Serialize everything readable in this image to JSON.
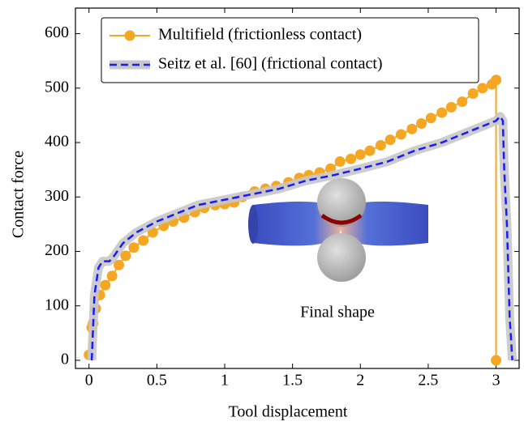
{
  "chart_data": {
    "type": "line",
    "xlabel": "Tool displacement",
    "ylabel": "Contact force",
    "annotation": "Final shape",
    "xlim": [
      -0.1,
      3.17
    ],
    "ylim": [
      -15,
      647
    ],
    "xticks": [
      0,
      0.5,
      1,
      1.5,
      2,
      2.5,
      3
    ],
    "yticks": [
      0,
      100,
      200,
      300,
      400,
      500,
      600
    ],
    "legend": "upper left",
    "series": [
      {
        "name": "Multifield (frictionless contact)",
        "color": "#f5a623",
        "marker": true,
        "x": [
          0.0,
          0.02,
          0.03,
          0.05,
          0.08,
          0.12,
          0.17,
          0.22,
          0.27,
          0.33,
          0.4,
          0.47,
          0.55,
          0.62,
          0.7,
          0.78,
          0.85,
          0.93,
          1.0,
          1.07,
          1.13,
          1.22,
          1.3,
          1.38,
          1.47,
          1.55,
          1.62,
          1.7,
          1.78,
          1.85,
          1.93,
          2.0,
          2.07,
          2.15,
          2.22,
          2.3,
          2.38,
          2.45,
          2.52,
          2.6,
          2.67,
          2.75,
          2.83,
          2.9,
          2.97,
          3.0,
          3.0
        ],
        "values": [
          10,
          60,
          68,
          95,
          120,
          138,
          155,
          175,
          192,
          207,
          220,
          235,
          247,
          255,
          262,
          272,
          280,
          285,
          287,
          290,
          300,
          310,
          315,
          320,
          327,
          335,
          340,
          345,
          352,
          365,
          370,
          378,
          385,
          395,
          405,
          415,
          425,
          435,
          445,
          455,
          465,
          475,
          490,
          500,
          507,
          515,
          0
        ]
      },
      {
        "name": "Seitz et al. [60]  (frictional contact)",
        "color": "#1a1aff",
        "marker": false,
        "x": [
          0.02,
          0.04,
          0.07,
          0.1,
          0.15,
          0.18,
          0.25,
          0.35,
          0.5,
          0.7,
          0.8,
          1.0,
          1.2,
          1.4,
          1.6,
          1.8,
          2.0,
          2.2,
          2.4,
          2.6,
          2.8,
          3.0,
          3.03,
          3.05,
          3.06,
          3.08,
          3.1,
          3.12
        ],
        "values": [
          0,
          120,
          170,
          182,
          182,
          190,
          215,
          235,
          255,
          275,
          285,
          295,
          305,
          315,
          330,
          340,
          352,
          365,
          385,
          400,
          420,
          440,
          448,
          440,
          350,
          250,
          80,
          0
        ]
      }
    ]
  }
}
